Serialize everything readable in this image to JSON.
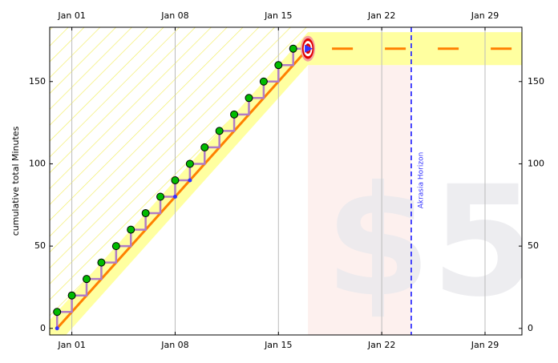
{
  "chart_data": {
    "type": "line",
    "ylabel": "cumulative total Minutes",
    "x": [
      0,
      1,
      2,
      3,
      4,
      5,
      6,
      7,
      8,
      9,
      10,
      11,
      12,
      13,
      14,
      15,
      16
    ],
    "series": [
      {
        "color": "#00bb00",
        "step_color": "#b07cc6",
        "values": [
          10,
          20,
          30,
          40,
          50,
          60,
          70,
          80,
          90,
          100,
          110,
          120,
          130,
          140,
          150,
          160,
          170
        ]
      }
    ],
    "datapoints": {
      "color": "#3333ff",
      "x": [
        0,
        8,
        9
      ],
      "values": [
        0,
        80,
        90
      ]
    },
    "road": {
      "color": "#ff8000",
      "x": [
        0,
        17,
        31.5
      ],
      "values": [
        0,
        170,
        170
      ]
    },
    "lane_width": 10,
    "lane_color": "#ffffa0",
    "goal": {
      "x": 17,
      "value": 170
    },
    "horizon": {
      "x": 24,
      "label": "Akrasia Horizon",
      "color": "#3333ff"
    },
    "watermark": "$5",
    "xlim": [
      -0.5,
      31.5
    ],
    "ylim": [
      -4,
      183
    ],
    "xticks": [
      {
        "value": 1,
        "label": "Jan 01"
      },
      {
        "value": 8,
        "label": "Jan 08"
      },
      {
        "value": 15,
        "label": "Jan 15"
      },
      {
        "value": 22,
        "label": "Jan 22"
      },
      {
        "value": 29,
        "label": "Jan 29"
      }
    ],
    "yticks": [
      0,
      50,
      100,
      150
    ],
    "grid": true
  }
}
